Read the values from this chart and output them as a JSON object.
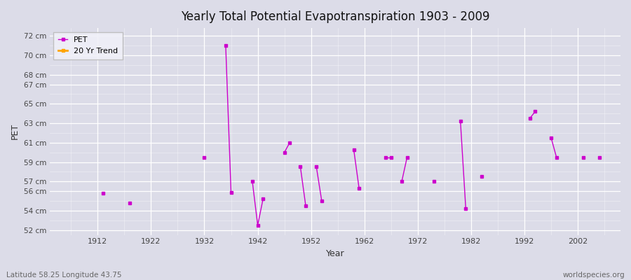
{
  "title": "Yearly Total Potential Evapotranspiration 1903 - 2009",
  "xlabel": "Year",
  "ylabel": "PET",
  "bottom_left": "Latitude 58.25 Longitude 43.75",
  "bottom_right": "worldspecies.org",
  "legend_pet": "PET",
  "legend_trend": "20 Yr Trend",
  "pet_color": "#cc00cc",
  "trend_color": "#ffa500",
  "bg_color": "#dcdce8",
  "plot_bg": "#dcdce8",
  "ylim_min": 51.5,
  "ylim_max": 72.8,
  "xlim_min": 1903,
  "xlim_max": 2010,
  "ytick_vals": [
    52,
    54,
    56,
    57,
    59,
    61,
    63,
    65,
    67,
    68,
    70,
    72
  ],
  "ytick_labels": [
    "52 cm",
    "54 cm",
    "56 cm",
    "57 cm",
    "59 cm",
    "61 cm",
    "63 cm",
    "65 cm",
    "67 cm",
    "68 cm",
    "70 cm",
    "72 cm"
  ],
  "xtick_vals": [
    1912,
    1922,
    1932,
    1942,
    1952,
    1962,
    1972,
    1982,
    1992,
    2002
  ],
  "segments": [
    {
      "years": [
        1913
      ],
      "values": [
        55.8
      ]
    },
    {
      "years": [
        1918
      ],
      "values": [
        54.8
      ]
    },
    {
      "years": [
        1932
      ],
      "values": [
        59.5
      ]
    },
    {
      "years": [
        1936,
        1937
      ],
      "values": [
        71.0,
        55.9
      ]
    },
    {
      "years": [
        1941,
        1942,
        1943
      ],
      "values": [
        57.0,
        52.5,
        55.2
      ]
    },
    {
      "years": [
        1947,
        1948
      ],
      "values": [
        60.0,
        61.0
      ]
    },
    {
      "years": [
        1950,
        1951
      ],
      "values": [
        58.5,
        54.5
      ]
    },
    {
      "years": [
        1953,
        1954
      ],
      "values": [
        58.5,
        55.0
      ]
    },
    {
      "years": [
        1960,
        1961
      ],
      "values": [
        60.3,
        56.3
      ]
    },
    {
      "years": [
        1966,
        1967
      ],
      "values": [
        59.5,
        59.5
      ]
    },
    {
      "years": [
        1969,
        1970
      ],
      "values": [
        57.0,
        59.5
      ]
    },
    {
      "years": [
        1975
      ],
      "values": [
        57.0
      ]
    },
    {
      "years": [
        1980,
        1981
      ],
      "values": [
        63.2,
        54.2
      ]
    },
    {
      "years": [
        1984
      ],
      "values": [
        57.5
      ]
    },
    {
      "years": [
        1993,
        1994
      ],
      "values": [
        63.5,
        64.2
      ]
    },
    {
      "years": [
        1997,
        1998
      ],
      "values": [
        61.5,
        59.5
      ]
    },
    {
      "years": [
        2003
      ],
      "values": [
        59.5
      ]
    },
    {
      "years": [
        2006
      ],
      "values": [
        59.5
      ]
    }
  ]
}
